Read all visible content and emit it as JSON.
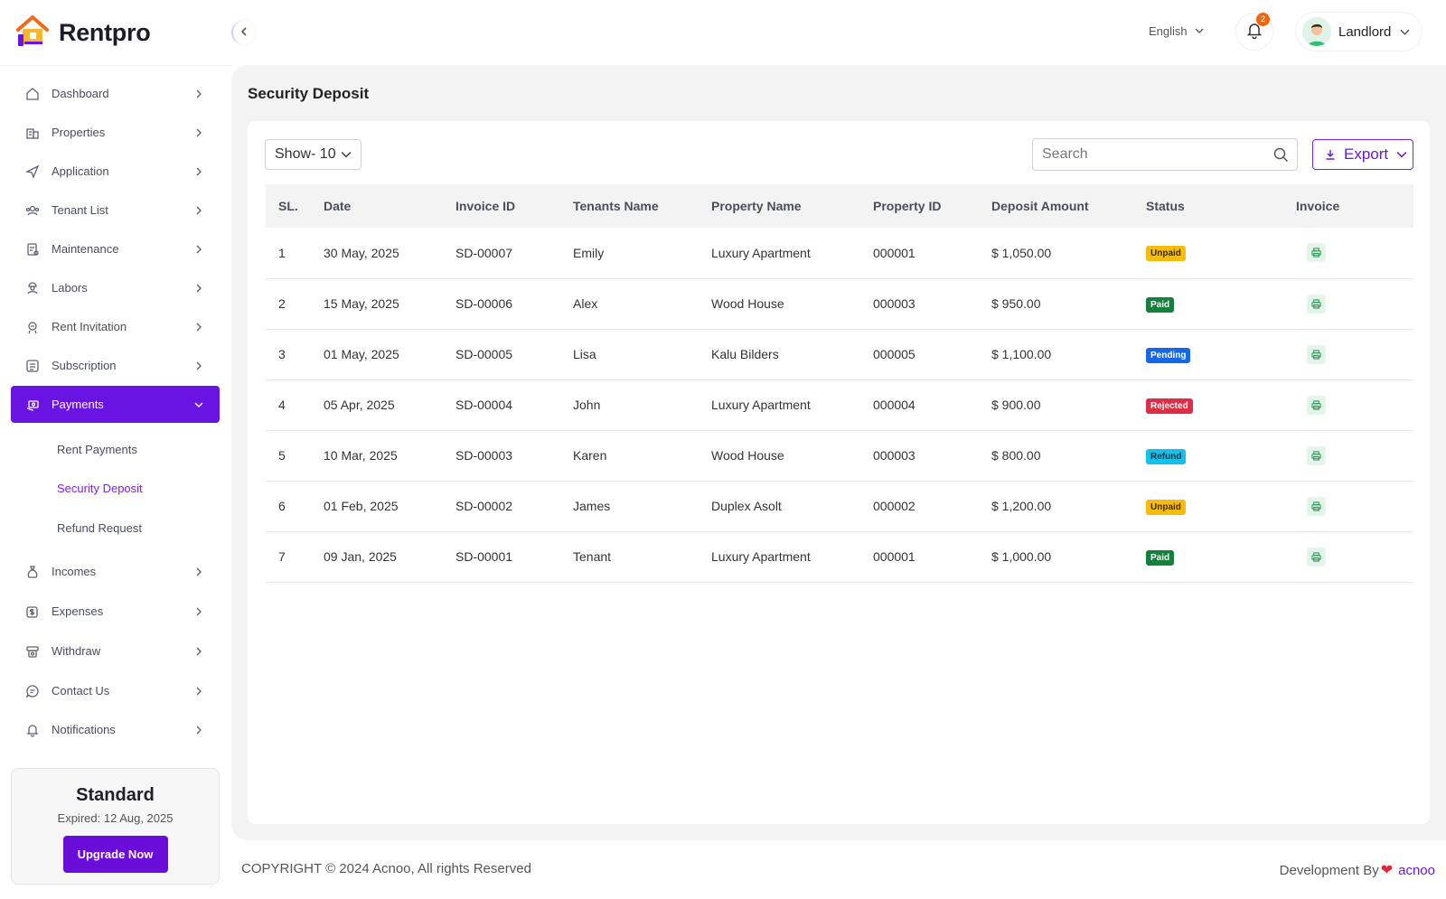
{
  "app": {
    "name": "Rentpro"
  },
  "sidebar": {
    "items": [
      {
        "label": "Dashboard",
        "icon": "home-icon"
      },
      {
        "label": "Properties",
        "icon": "building-icon"
      },
      {
        "label": "Application",
        "icon": "send-icon"
      },
      {
        "label": "Tenant List",
        "icon": "users-icon"
      },
      {
        "label": "Maintenance",
        "icon": "clipboard-icon"
      },
      {
        "label": "Labors",
        "icon": "worker-icon"
      },
      {
        "label": "Rent Invitation",
        "icon": "invitation-icon"
      },
      {
        "label": "Subscription",
        "icon": "subscription-icon"
      },
      {
        "label": "Payments",
        "icon": "payment-icon",
        "active": true
      },
      {
        "label": "Incomes",
        "icon": "money-bag-icon"
      },
      {
        "label": "Expenses",
        "icon": "expense-icon"
      },
      {
        "label": "Withdraw",
        "icon": "withdraw-icon"
      },
      {
        "label": "Contact Us",
        "icon": "chat-icon"
      },
      {
        "label": "Notifications",
        "icon": "bell-icon"
      }
    ],
    "payments_sub": [
      {
        "label": "Rent Payments"
      },
      {
        "label": "Security Deposit",
        "current": true
      },
      {
        "label": "Refund Request"
      }
    ],
    "plan": {
      "name": "Standard",
      "expired": "Expired: 12 Aug, 2025",
      "upgrade_label": "Upgrade Now"
    }
  },
  "topbar": {
    "language": "English",
    "notification_count": "2",
    "user_name": "Landlord"
  },
  "page": {
    "title": "Security Deposit",
    "show_select": "Show- 10",
    "search_placeholder": "Search",
    "export_label": "Export"
  },
  "table": {
    "headers": [
      "SL.",
      "Date",
      "Invoice ID",
      "Tenants Name",
      "Property Name",
      "Property ID",
      "Deposit Amount",
      "Status",
      "Invoice"
    ],
    "rows": [
      {
        "sl": "1",
        "date": "30 May, 2025",
        "invoice_id": "SD-00007",
        "tenant": "Emily",
        "property": "Luxury Apartment",
        "property_id": "000001",
        "amount": "$ 1,050.00",
        "status": "Unpaid"
      },
      {
        "sl": "2",
        "date": "15 May, 2025",
        "invoice_id": "SD-00006",
        "tenant": "Alex",
        "property": "Wood House",
        "property_id": "000003",
        "amount": "$ 950.00",
        "status": "Paid"
      },
      {
        "sl": "3",
        "date": "01 May, 2025",
        "invoice_id": "SD-00005",
        "tenant": "Lisa",
        "property": "Kalu Bilders",
        "property_id": "000005",
        "amount": "$ 1,100.00",
        "status": "Pending"
      },
      {
        "sl": "4",
        "date": "05 Apr, 2025",
        "invoice_id": "SD-00004",
        "tenant": "John",
        "property": "Luxury Apartment",
        "property_id": "000004",
        "amount": "$ 900.00",
        "status": "Rejected"
      },
      {
        "sl": "5",
        "date": "10 Mar, 2025",
        "invoice_id": "SD-00003",
        "tenant": "Karen",
        "property": "Wood House",
        "property_id": "000003",
        "amount": "$ 800.00",
        "status": "Refund"
      },
      {
        "sl": "6",
        "date": "01 Feb, 2025",
        "invoice_id": "SD-00002",
        "tenant": "James",
        "property": "Duplex Asolt",
        "property_id": "000002",
        "amount": "$ 1,200.00",
        "status": "Unpaid"
      },
      {
        "sl": "7",
        "date": "09 Jan, 2025",
        "invoice_id": "SD-00001",
        "tenant": "Tenant",
        "property": "Luxury Apartment",
        "property_id": "000001",
        "amount": "$ 1,000.00",
        "status": "Paid"
      }
    ]
  },
  "footer": {
    "copyright": "COPYRIGHT © 2024 Acnoo, All rights Reserved",
    "dev_prefix": "Development By",
    "dev_brand": "acnoo"
  },
  "colors": {
    "accent": "#6a14e3",
    "unpaid": "#f5bc0a",
    "paid": "#14803c",
    "pending": "#1668e8",
    "rejected": "#dc2f45",
    "refund": "#14c1e8"
  }
}
